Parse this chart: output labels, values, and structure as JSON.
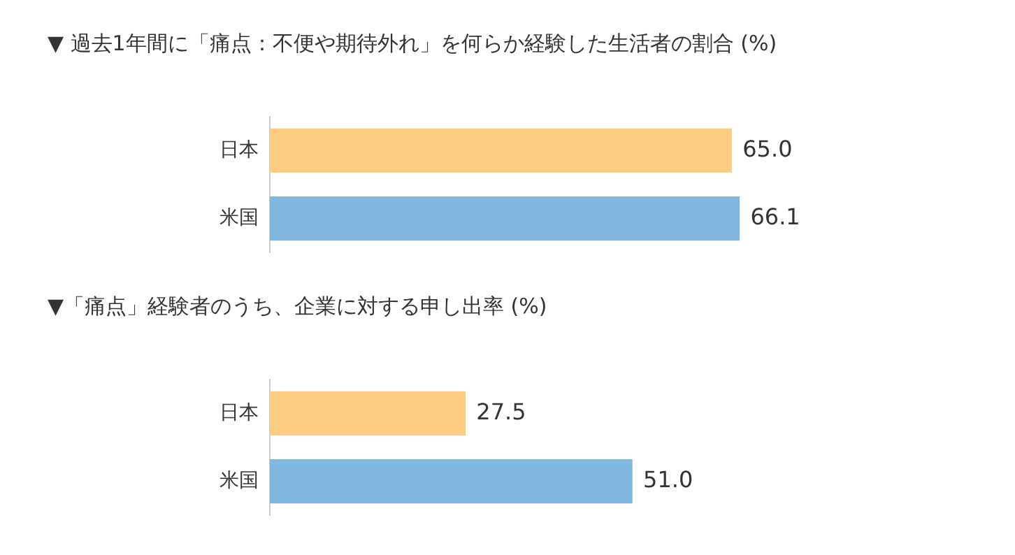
{
  "chart_data": [
    {
      "type": "bar",
      "orientation": "horizontal",
      "title": "▼ 過去1年間に「痛点：不便や期待外れ」を何らか経験した生活者の割合 (%)",
      "categories": [
        "日本",
        "米国"
      ],
      "values": [
        65.0,
        66.1
      ],
      "colors": [
        "#fdcc80",
        "#7fb7df"
      ],
      "value_labels": [
        "65.0",
        "66.1"
      ]
    },
    {
      "type": "bar",
      "orientation": "horizontal",
      "title": "▼「痛点」経験者のうち、企業に対する申し出率 (%)",
      "categories": [
        "日本",
        "米国"
      ],
      "values": [
        27.5,
        51.0
      ],
      "colors": [
        "#fdcc80",
        "#7fb7df"
      ],
      "value_labels": [
        "27.5",
        "51.0"
      ]
    }
  ]
}
